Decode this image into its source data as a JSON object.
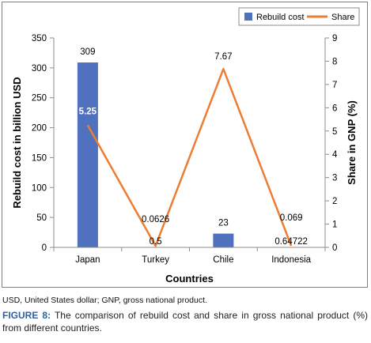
{
  "chart_data": {
    "type": "bar+line",
    "categories": [
      "Japan",
      "Turkey",
      "Chile",
      "Indonesia"
    ],
    "series": [
      {
        "name": "Rebuild cost",
        "type": "bar",
        "axis": "left",
        "values": [
          309,
          0.5,
          23,
          0.64722
        ],
        "labels": [
          "309",
          "0.5",
          "23",
          "0.64722"
        ],
        "color": "#4f71be"
      },
      {
        "name": "Share",
        "type": "line",
        "axis": "right",
        "values": [
          5.25,
          0.0626,
          7.67,
          0.069
        ],
        "labels": [
          "5.25",
          "0.0626",
          "7.67",
          "0.069"
        ],
        "color": "#ed7d31"
      }
    ],
    "xlabel": "Countries",
    "ylabel": "Rebuild cost in billion USD",
    "y2label": "Share in GNP (%)",
    "ylim": [
      0,
      350
    ],
    "yticks": [
      0,
      50,
      100,
      150,
      200,
      250,
      300,
      350
    ],
    "y2lim": [
      0,
      9
    ],
    "y2ticks": [
      0,
      1,
      2,
      3,
      4,
      5,
      6,
      7,
      8,
      9
    ],
    "grid": false,
    "legend_position": "top-right"
  },
  "footnote": "USD, United States dollar; GNP, gross national product.",
  "caption": {
    "label": "FIGURE 8:",
    "text": " The comparison of rebuild cost and share in gross national product (%) from different countries."
  }
}
